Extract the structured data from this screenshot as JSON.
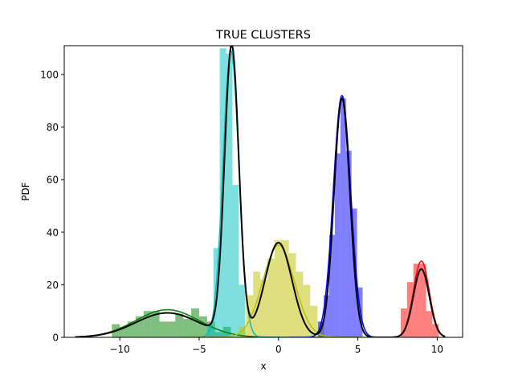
{
  "chart_data": {
    "type": "histogram+line",
    "title": "TRUE CLUSTERS",
    "xlabel": "x",
    "ylabel": "PDF",
    "xlim": [
      -13.5,
      11.6
    ],
    "ylim": [
      0,
      111
    ],
    "x_ticks": [
      -10,
      -5,
      0,
      5,
      10
    ],
    "x_tick_labels": [
      "−10",
      "−5",
      "0",
      "5",
      "10"
    ],
    "y_ticks": [
      0,
      20,
      40,
      60,
      80,
      100
    ],
    "y_tick_labels": [
      "0",
      "20",
      "40",
      "60",
      "80",
      "100"
    ],
    "grid": false,
    "histograms": [
      {
        "name": "green cluster",
        "color": "#008000",
        "alpha": 0.5,
        "start": -10.5,
        "width": 0.5,
        "counts": [
          5,
          4,
          6,
          8,
          10,
          10,
          6,
          6,
          9,
          7,
          11,
          8,
          6,
          2,
          4
        ]
      },
      {
        "name": "cyan cluster",
        "color": "#00bfbf",
        "alpha": 0.5,
        "start": -4.5,
        "width": 0.4,
        "counts": [
          5,
          34,
          110,
          108,
          58,
          20
        ]
      },
      {
        "name": "yellow cluster",
        "color": "#bfbf00",
        "alpha": 0.5,
        "start": -2.5,
        "width": 0.45,
        "counts": [
          4,
          16,
          25,
          22,
          30,
          37,
          37,
          32,
          25,
          20,
          12,
          6
        ]
      },
      {
        "name": "blue cluster",
        "color": "#0000ff",
        "alpha": 0.5,
        "start": 2.5,
        "width": 0.35,
        "counts": [
          6,
          16,
          39,
          70,
          91,
          71,
          49,
          19
        ]
      },
      {
        "name": "red cluster",
        "color": "#ff0000",
        "alpha": 0.5,
        "start": 7.7,
        "width": 0.4,
        "counts": [
          11,
          21,
          28,
          28,
          10,
          5
        ]
      }
    ],
    "components": [
      {
        "name": "green",
        "color": "#008000",
        "mean": -7.0,
        "sd": 2.0,
        "peak": 10.5
      },
      {
        "name": "cyan",
        "color": "#00bfbf",
        "mean": -3.0,
        "sd": 0.5,
        "peak": 109
      },
      {
        "name": "yellow",
        "color": "#bfbf00",
        "mean": 0.0,
        "sd": 1.0,
        "peak": 35
      },
      {
        "name": "blue",
        "color": "#0000ff",
        "mean": 4.0,
        "sd": 0.55,
        "peak": 92
      },
      {
        "name": "red",
        "color": "#ff0000",
        "mean": 9.0,
        "sd": 0.5,
        "peak": 29
      }
    ],
    "mixture": {
      "name": "mixture fit",
      "color": "#000000",
      "x_range": [
        -12.8,
        10.5
      ],
      "components": [
        {
          "mean": -7.0,
          "sd": 2.0,
          "peak": 9.3
        },
        {
          "mean": -2.95,
          "sd": 0.45,
          "peak": 110
        },
        {
          "mean": 0.0,
          "sd": 0.85,
          "peak": 36
        },
        {
          "mean": 4.0,
          "sd": 0.5,
          "peak": 91
        },
        {
          "mean": 9.0,
          "sd": 0.5,
          "peak": 26
        }
      ]
    }
  }
}
